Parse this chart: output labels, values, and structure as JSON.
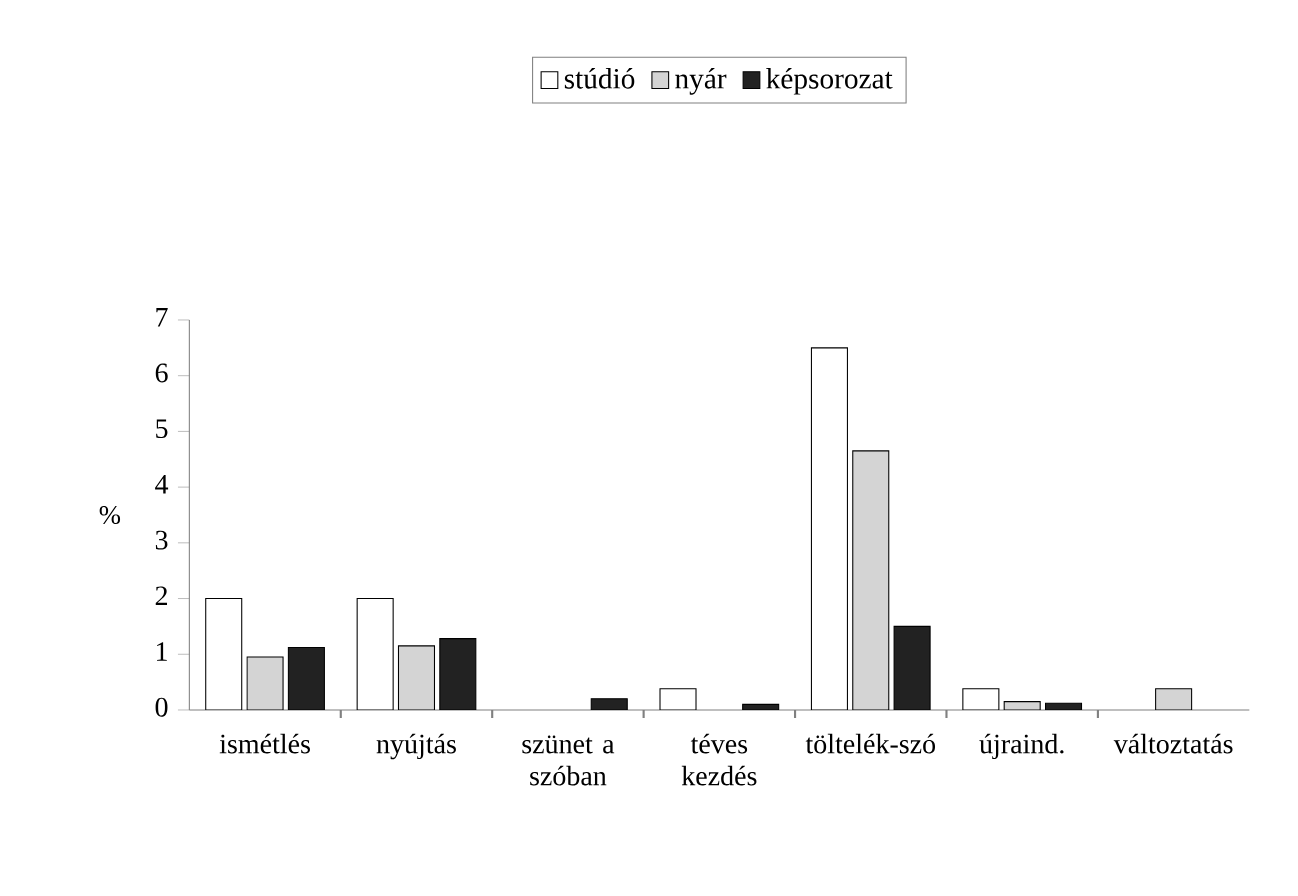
{
  "chart_data": {
    "type": "bar",
    "ylabel": "%",
    "categories": [
      "ismétlés",
      "nyújtás",
      "szünet a szóban",
      "téves kezdés",
      "töltelék-szó",
      "újraind.",
      "változtatás"
    ],
    "series": [
      {
        "name": "stúdió",
        "color": "#ffffff",
        "values": [
          2.0,
          2.0,
          null,
          0.38,
          6.5,
          0.38,
          null
        ]
      },
      {
        "name": "nyár",
        "color": "#d4d4d4",
        "values": [
          0.95,
          1.15,
          null,
          null,
          4.65,
          0.15,
          0.38
        ]
      },
      {
        "name": "képsorozat",
        "color": "#222222",
        "values": [
          1.12,
          1.28,
          0.2,
          0.1,
          1.5,
          0.12,
          null
        ]
      }
    ],
    "ylim": [
      0,
      7
    ],
    "yticks": [
      0,
      1,
      2,
      3,
      4,
      5,
      6,
      7
    ],
    "legend": "top"
  }
}
